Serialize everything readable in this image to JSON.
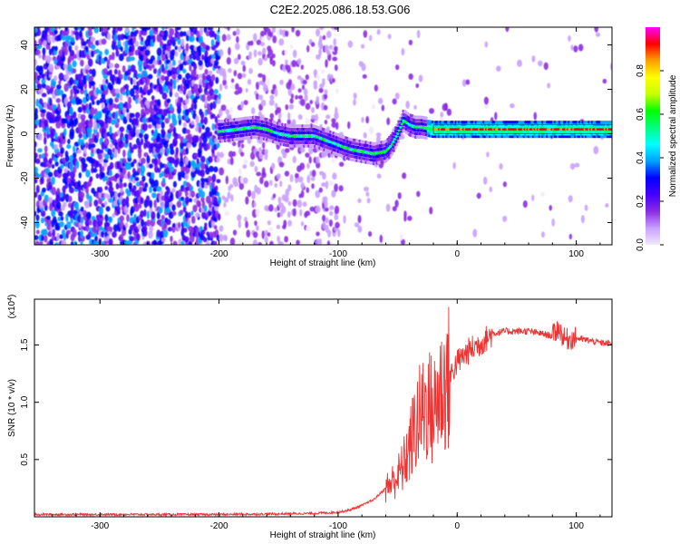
{
  "title": "C2E2.2025.086.18.53.G06",
  "chart_data": [
    {
      "type": "heatmap",
      "xlabel": "Height of straight line (km)",
      "ylabel": "Frequency (Hz)",
      "xlim": [
        -355,
        130
      ],
      "ylim": [
        -50,
        48
      ],
      "xticks": [
        -300,
        -200,
        -100,
        0,
        100
      ],
      "yticks": [
        -40,
        -20,
        0,
        20,
        40
      ],
      "colorbar": {
        "label": "Normalized spectral amplitude",
        "range": [
          0,
          1
        ],
        "ticks": [
          "0.0",
          "0.2",
          "0.4",
          "0.6",
          "0.8"
        ],
        "tick_values": [
          0.0,
          0.2,
          0.4,
          0.6,
          0.8
        ],
        "colors": [
          "#f2e8ff",
          "#c8a0ff",
          "#8b2be2",
          "#4400ff",
          "#0000ff",
          "#00a0ff",
          "#00ffff",
          "#00ff80",
          "#00ff00",
          "#c8ff00",
          "#ffff00",
          "#ffa000",
          "#ff0000",
          "#ff00ff"
        ]
      },
      "ridge": {
        "x": [
          -200,
          -185,
          -170,
          -160,
          -150,
          -140,
          -130,
          -120,
          -110,
          -100,
          -90,
          -80,
          -70,
          -60,
          -55,
          -50,
          -45,
          -40,
          -35,
          -30,
          -20,
          -10,
          0,
          20,
          40,
          60,
          80,
          100,
          130
        ],
        "y": [
          1,
          2,
          3,
          2,
          0,
          -1,
          -1,
          -1,
          -3,
          -5,
          -7,
          -8,
          -9,
          -8,
          -5,
          0,
          6,
          4,
          3,
          3,
          2,
          2,
          2,
          2,
          2,
          2,
          2,
          2,
          2
        ]
      }
    },
    {
      "type": "line",
      "xlabel": "Height of straight line (km)",
      "ylabel": "SNR (10 * v/v)",
      "y_multiplier": "(x10",
      "y_multiplier_exp": "4",
      "y_multiplier_close": ")",
      "xlim": [
        -355,
        130
      ],
      "ylim": [
        0,
        1.9
      ],
      "xticks": [
        -300,
        -200,
        -100,
        0,
        100
      ],
      "yticks": [
        0.5,
        1.0,
        1.5
      ],
      "ytick_labels": [
        "0.5",
        "1.0",
        "1.5"
      ],
      "series": [
        {
          "color": "#ee3333",
          "x": [
            -355,
            -300,
            -250,
            -200,
            -150,
            -120,
            -100,
            -90,
            -80,
            -70,
            -60,
            -50,
            -45,
            -40,
            -35,
            -30,
            -25,
            -20,
            -15,
            -10,
            -5,
            0,
            10,
            20,
            30,
            40,
            50,
            60,
            70,
            80,
            85,
            90,
            100,
            110,
            120,
            130
          ],
          "y": [
            0.02,
            0.02,
            0.02,
            0.02,
            0.025,
            0.03,
            0.04,
            0.06,
            0.1,
            0.15,
            0.25,
            0.35,
            0.45,
            0.6,
            0.8,
            0.9,
            1.0,
            0.9,
            1.1,
            1.15,
            1.25,
            1.35,
            1.45,
            1.52,
            1.6,
            1.62,
            1.62,
            1.62,
            1.6,
            1.58,
            1.65,
            1.55,
            1.56,
            1.54,
            1.52,
            1.51
          ]
        }
      ]
    }
  ]
}
